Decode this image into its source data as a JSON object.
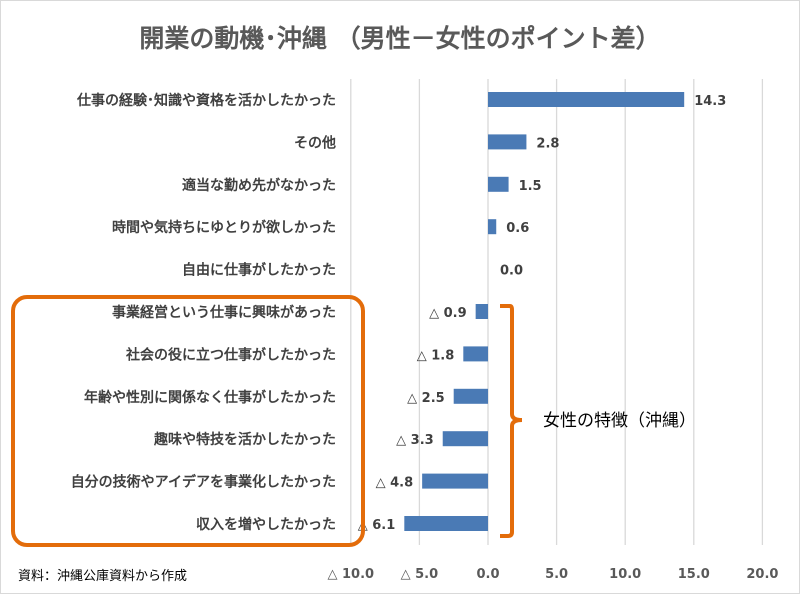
{
  "chart_data": {
    "type": "bar",
    "orientation": "horizontal",
    "title": "開業の動機･沖縄 （男性－女性のポイント差）",
    "categories": [
      "仕事の経験･知識や資格を活かしたかった",
      "その他",
      "適当な勤め先がなかった",
      "時間や気持ちにゆとりが欲しかった",
      "自由に仕事がしたかった",
      "事業経営という仕事に興味があった",
      "社会の役に立つ仕事がしたかった",
      "年齢や性別に関係なく仕事がしたかった",
      "趣味や特技を活かしたかった",
      "自分の技術やアイデアを事業化したかった",
      "収入を増やしたかった"
    ],
    "values": [
      14.3,
      2.8,
      1.5,
      0.6,
      0.0,
      -0.9,
      -1.8,
      -2.5,
      -3.3,
      -4.8,
      -6.1
    ],
    "data_labels": [
      "14.3",
      "2.8",
      "1.5",
      "0.6",
      "0.0",
      "△ 0.9",
      "△ 1.8",
      "△ 2.5",
      "△ 3.3",
      "△ 4.8",
      "△ 6.1"
    ],
    "xlim": [
      -10,
      20
    ],
    "xticks": [
      -10,
      -5,
      0,
      5,
      10,
      15,
      20
    ],
    "xtick_labels": [
      "△ 10.0",
      "△ 5.0",
      "0.0",
      "5.0",
      "10.0",
      "15.0",
      "20.0"
    ],
    "grid": "vertical",
    "bar_color": "#4a7ab5",
    "annotation": "女性の特徴（沖縄）",
    "annotation_color": "#e36c0a",
    "highlighted_categories_range": [
      5,
      10
    ]
  },
  "source": "資料：沖縄公庫資料から作成"
}
